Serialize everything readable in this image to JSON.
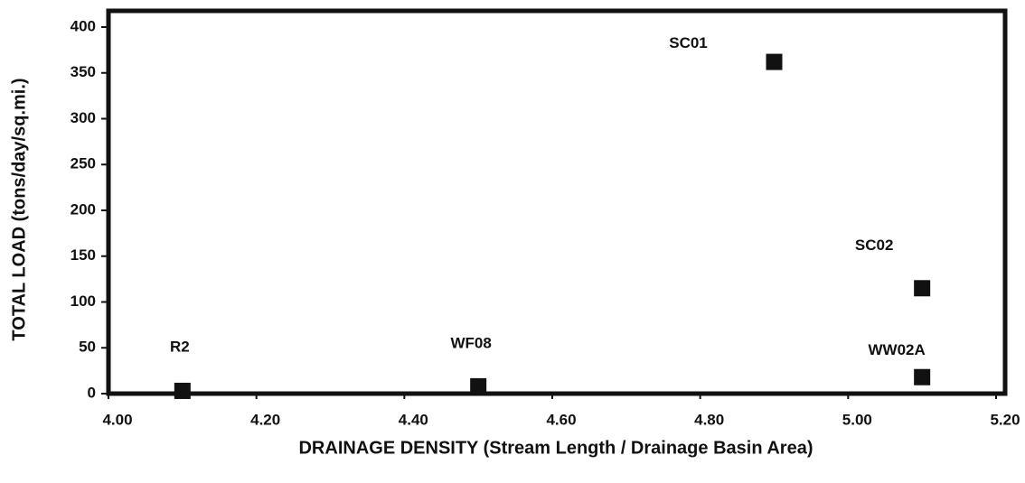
{
  "chart_data": {
    "type": "scatter",
    "x_label": "DRAINAGE DENSITY (Stream Length / Drainage Basin Area)",
    "y_label": "TOTAL LOAD (tons/day/sq.mi.)",
    "x": [
      4.1,
      4.5,
      4.9,
      5.1,
      5.1
    ],
    "values": [
      3,
      8,
      362,
      115,
      18
    ],
    "labels": [
      "R2",
      "WF08",
      "SC01",
      "SC02",
      "WW02A"
    ],
    "color": "#111111",
    "xlim": [
      4.0,
      5.2
    ],
    "ylim": [
      0,
      400
    ],
    "xticks": [
      {
        "value": 4.0,
        "label": "4.00"
      },
      {
        "value": 4.2,
        "label": "4.20"
      },
      {
        "value": 4.4,
        "label": "4.40"
      },
      {
        "value": 4.6,
        "label": "4.60"
      },
      {
        "value": 4.8,
        "label": "4.80"
      },
      {
        "value": 5.0,
        "label": "5.00"
      },
      {
        "value": 5.2,
        "label": "5.20"
      }
    ],
    "yticks": [
      0,
      50,
      100,
      150,
      200,
      250,
      300,
      350,
      400
    ],
    "grid": false
  }
}
